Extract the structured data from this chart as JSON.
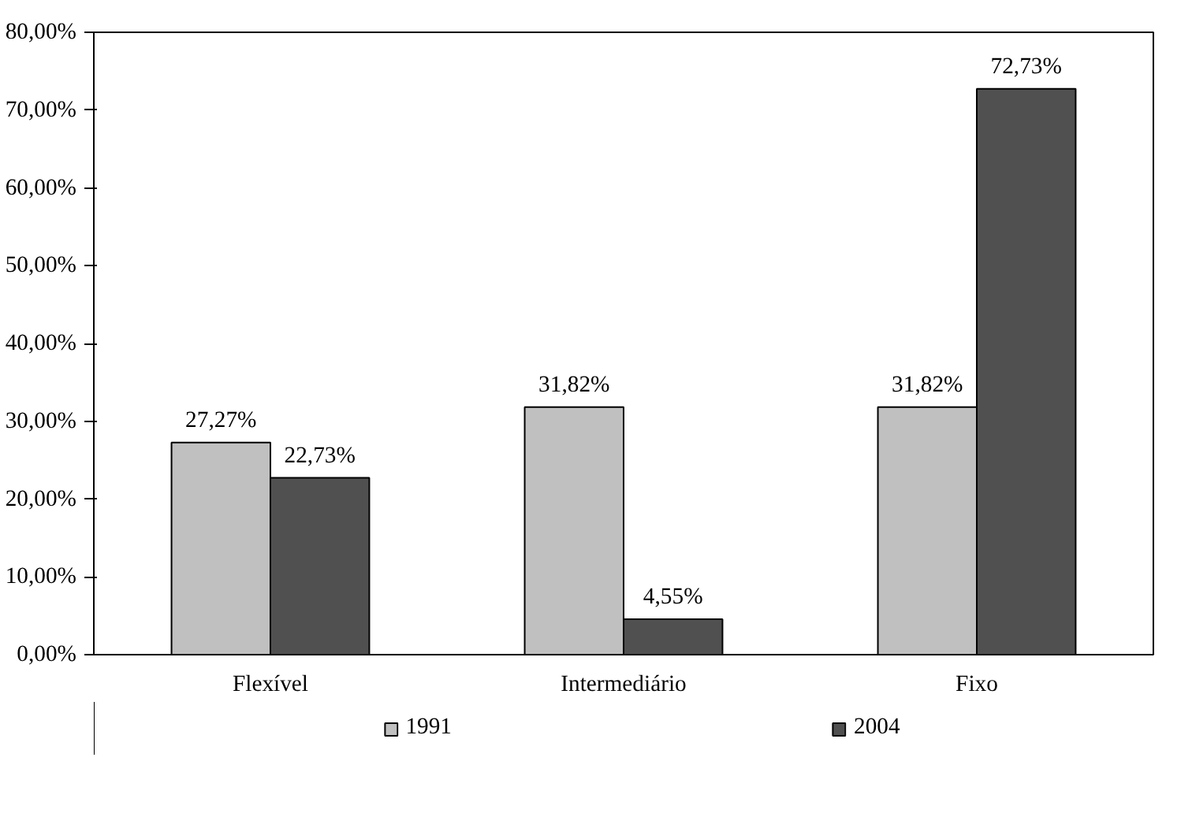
{
  "chart_data": {
    "type": "bar",
    "categories": [
      "Flexível",
      "Intermediário",
      "Fixo"
    ],
    "series": [
      {
        "name": "1991",
        "color": "#c0c0c0",
        "values": [
          27.27,
          31.82,
          31.82
        ],
        "value_labels": [
          "27,27%",
          "31,82%",
          "31,82%"
        ]
      },
      {
        "name": "2004",
        "color": "#505050",
        "values": [
          22.73,
          4.55,
          72.73
        ],
        "value_labels": [
          "22,73%",
          "4,55%",
          "72,73%"
        ]
      }
    ],
    "ylim": [
      0,
      80
    ],
    "yticks": [
      {
        "value": 0,
        "label": "0,00%"
      },
      {
        "value": 10,
        "label": "10,00%"
      },
      {
        "value": 20,
        "label": "20,00%"
      },
      {
        "value": 30,
        "label": "30,00%"
      },
      {
        "value": 40,
        "label": "40,00%"
      },
      {
        "value": 50,
        "label": "50,00%"
      },
      {
        "value": 60,
        "label": "60,00%"
      },
      {
        "value": 70,
        "label": "70,00%"
      },
      {
        "value": 80,
        "label": "80,00%"
      }
    ],
    "grid": false,
    "legend": "bottom"
  }
}
